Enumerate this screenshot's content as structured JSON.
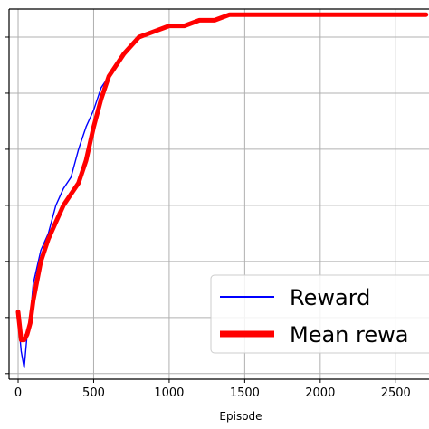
{
  "chart_data": {
    "type": "line",
    "title": "",
    "xlabel": "Episode",
    "ylabel": "",
    "xlim": [
      -60,
      2720
    ],
    "ylim": [
      -11,
      55
    ],
    "x_ticks": [
      0,
      500,
      1000,
      1500,
      2000,
      2500
    ],
    "y_ticks": [
      -10,
      0,
      10,
      20,
      30,
      40,
      50
    ],
    "grid": true,
    "legend_position": "lower-right",
    "series": [
      {
        "name": "Reward",
        "color": "#0000ff",
        "x": [
          0,
          20,
          40,
          60,
          80,
          100,
          150,
          200,
          250,
          300,
          350,
          400,
          450,
          500,
          550,
          600,
          700,
          800,
          900,
          1000,
          1100,
          1200,
          1300,
          1400,
          1500,
          1700,
          1900,
          2100,
          2300,
          2500,
          2700
        ],
        "values": [
          0,
          -6,
          -9,
          -3,
          0,
          6,
          12,
          15,
          20,
          23,
          25,
          30,
          34,
          37,
          41,
          43,
          47,
          50,
          51,
          52,
          52,
          53,
          53,
          54,
          54,
          54,
          54,
          54,
          54,
          54,
          54
        ]
      },
      {
        "name": "Mean rewa",
        "color": "#ff0000",
        "x": [
          0,
          20,
          40,
          60,
          80,
          100,
          150,
          200,
          250,
          300,
          350,
          400,
          450,
          500,
          550,
          600,
          700,
          800,
          900,
          1000,
          1100,
          1200,
          1300,
          1400,
          1500,
          1700,
          1900,
          2100,
          2300,
          2500,
          2700
        ],
        "values": [
          1,
          -4,
          -4,
          -3,
          -1,
          3,
          10,
          14,
          17,
          20,
          22,
          24,
          28,
          34,
          39,
          43,
          47,
          50,
          51,
          52,
          52,
          53,
          53,
          54,
          54,
          54,
          54,
          54,
          54,
          54,
          54
        ]
      }
    ]
  }
}
